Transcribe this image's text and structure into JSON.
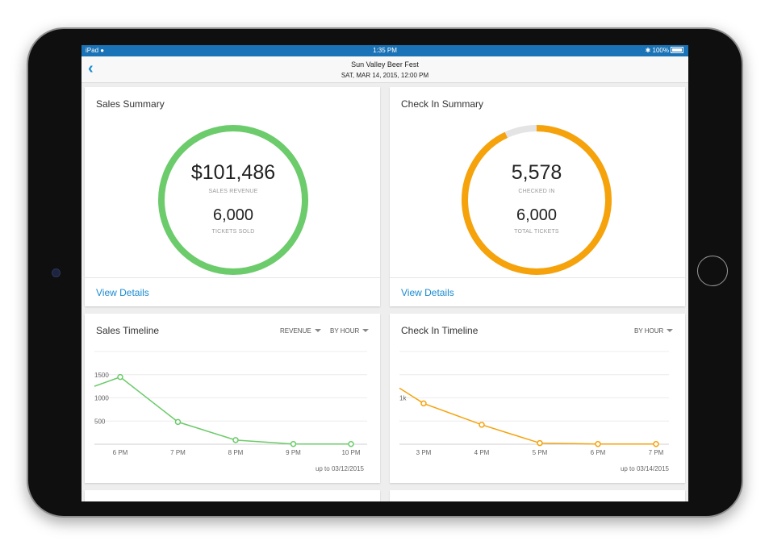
{
  "status_bar": {
    "device": "iPad",
    "time": "1:35 PM",
    "battery": "100%"
  },
  "nav": {
    "title": "Sun Valley Beer Fest",
    "subtitle": "SAT, MAR 14, 2015, 12:00 PM"
  },
  "sales_summary": {
    "title": "Sales Summary",
    "revenue": "$101,486",
    "revenue_label": "SALES REVENUE",
    "tickets": "6,000",
    "tickets_label": "TICKETS SOLD",
    "link": "View Details",
    "ring_fraction": 1.0,
    "color": "#6ccb6b"
  },
  "checkin_summary": {
    "title": "Check In Summary",
    "checked_in": "5,578",
    "checked_in_label": "CHECKED IN",
    "total": "6,000",
    "total_label": "TOTAL TICKETS",
    "link": "View Details",
    "ring_fraction": 0.93,
    "color": "#f5a20b",
    "track_color": "#e4e4e4"
  },
  "sales_timeline": {
    "title": "Sales Timeline",
    "dropdown_metric": "REVENUE",
    "dropdown_interval": "BY HOUR",
    "footnote": "up to 03/12/2015"
  },
  "checkin_timeline": {
    "title": "Check In Timeline",
    "dropdown_interval": "BY HOUR",
    "footnote": "up to 03/14/2015"
  },
  "chart_data": [
    {
      "type": "line",
      "x": [
        "6 PM",
        "7 PM",
        "8 PM",
        "9 PM",
        "10 PM"
      ],
      "y_tick_labels": [
        "500",
        "1000",
        "1500"
      ],
      "ylim": [
        0,
        2000
      ],
      "series": [
        {
          "values": [
            1450,
            480,
            90,
            5,
            5
          ],
          "color": "#6ccb6b"
        }
      ],
      "leading_value": 1250,
      "grid": true
    },
    {
      "type": "line",
      "x": [
        "3 PM",
        "4 PM",
        "5 PM",
        "6 PM",
        "7 PM"
      ],
      "y_tick_labels": [
        "1k"
      ],
      "ylim": [
        0,
        2000
      ],
      "series": [
        {
          "values": [
            880,
            420,
            25,
            5,
            5
          ],
          "color": "#f5a20b"
        }
      ],
      "leading_value": 1210,
      "grid": true
    }
  ]
}
